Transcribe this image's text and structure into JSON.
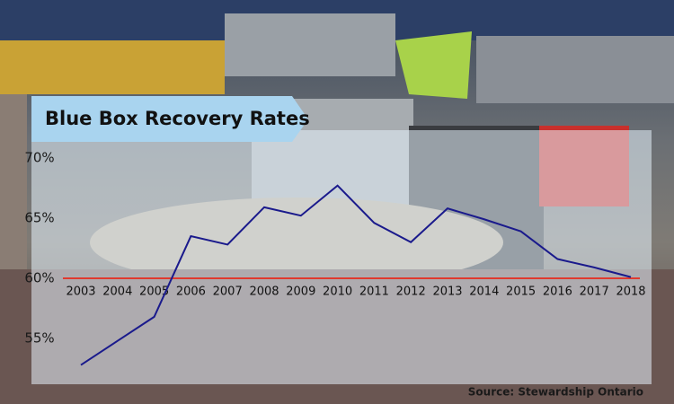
{
  "chart_data": {
    "type": "line",
    "title": "Blue Box Recovery Rates",
    "source": "Source: Stewardship Ontario",
    "categories": [
      "2003",
      "2004",
      "2005",
      "2006",
      "2007",
      "2008",
      "2009",
      "2010",
      "2011",
      "2012",
      "2013",
      "2014",
      "2015",
      "2016",
      "2017",
      "2018"
    ],
    "values": [
      52.8,
      54.8,
      56.8,
      63.5,
      62.8,
      65.9,
      65.2,
      67.7,
      64.6,
      63.0,
      65.8,
      64.9,
      63.9,
      61.6,
      60.9,
      60.1
    ],
    "color": "#1a1a8c",
    "ylim": [
      51.2,
      72.3
    ],
    "yticks": [
      {
        "value": 55,
        "label": "55%"
      },
      {
        "value": 60,
        "label": "60%"
      },
      {
        "value": 65,
        "label": "65%"
      },
      {
        "value": 70,
        "label": "70%"
      }
    ],
    "reference_line": {
      "value": 60,
      "color": "#e03a2f"
    },
    "grid": false
  }
}
